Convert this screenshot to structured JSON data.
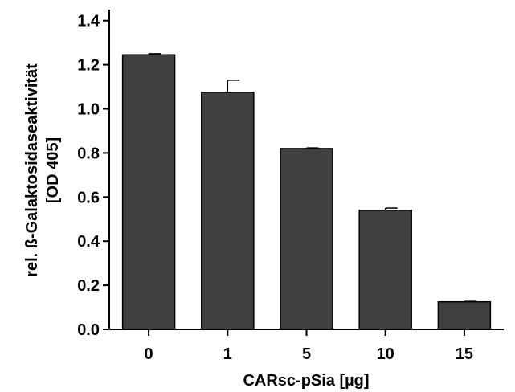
{
  "chart_data": {
    "type": "bar",
    "categories": [
      "0",
      "1",
      "5",
      "10",
      "15"
    ],
    "values": [
      1.245,
      1.075,
      0.82,
      0.54,
      0.125
    ],
    "errors": [
      0.005,
      0.055,
      0.003,
      0.01,
      0.002
    ],
    "ylabel_line1": "rel. ß-Galaktosidaseaktivität",
    "ylabel_line2": "[OD 405]",
    "xlabel": "CARsc-pSia [µg]",
    "ylim": [
      0,
      1.45
    ],
    "yticks": [
      0.0,
      0.2,
      0.4,
      0.6,
      0.8,
      1.0,
      1.2,
      1.4
    ],
    "ytick_labels": [
      "0.0",
      "0.2",
      "0.4",
      "0.6",
      "0.8",
      "1.0",
      "1.2",
      "1.4"
    ],
    "grid": false,
    "bar_color": "#404040"
  }
}
